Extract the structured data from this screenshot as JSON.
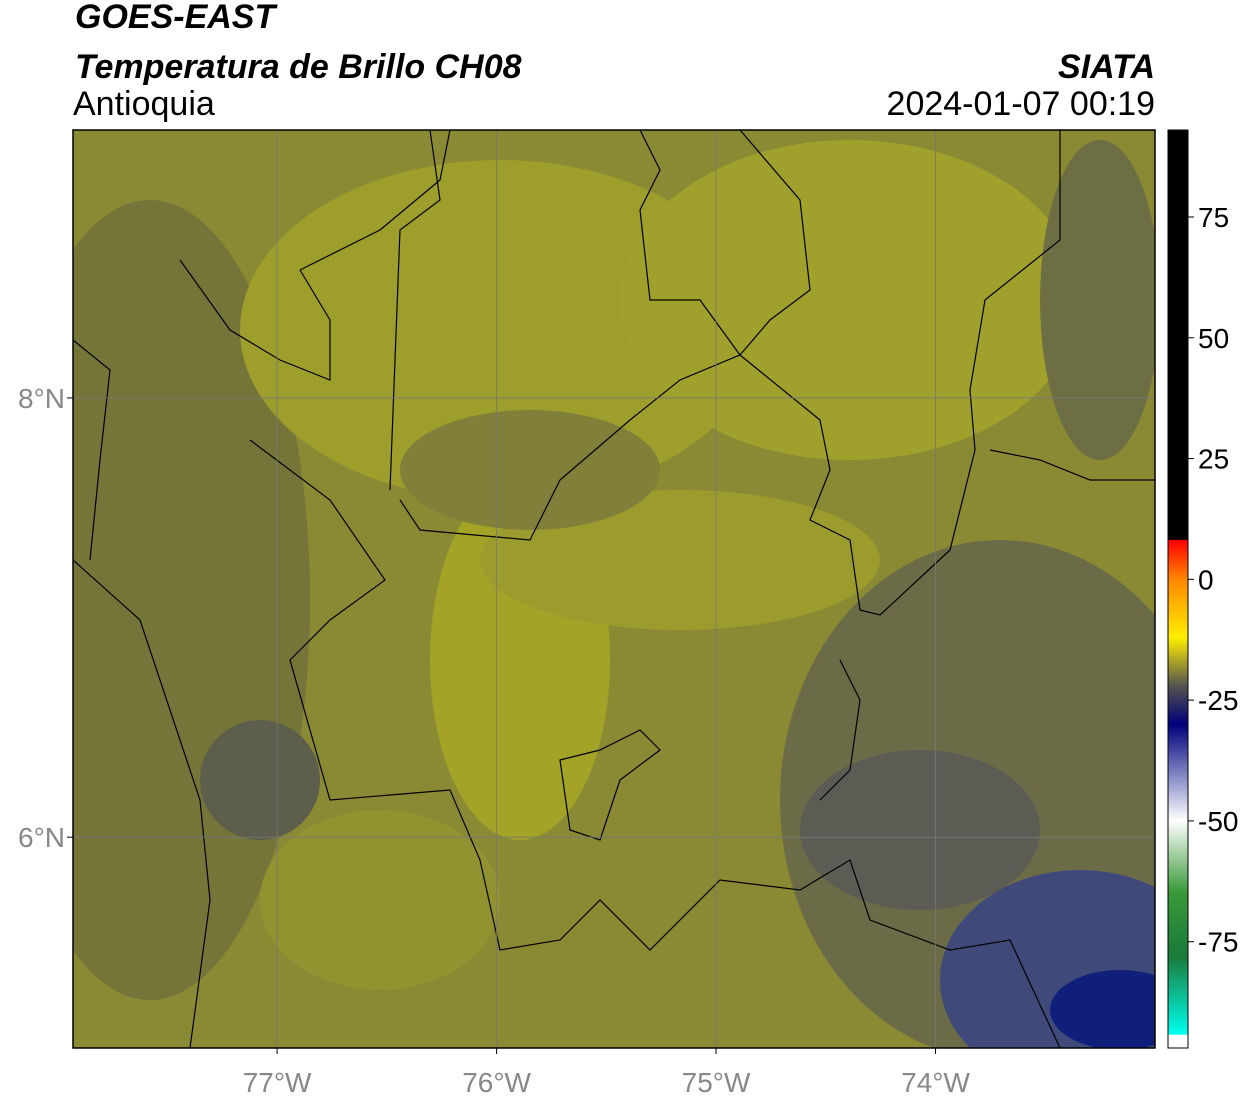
{
  "header": {
    "title": "GOES-EAST",
    "subtitle": "Temperatura de Brillo CH08",
    "region": "Antioquia",
    "source": "SIATA",
    "datetime": "2024-01-07 00:19"
  },
  "map": {
    "lon_lim": [
      -77.93,
      -73.0
    ],
    "lat_lim": [
      5.04,
      9.22
    ],
    "lon_ticks": [
      {
        "value": -77,
        "label": "77°W"
      },
      {
        "value": -76,
        "label": "76°W"
      },
      {
        "value": -75,
        "label": "75°W"
      },
      {
        "value": -74,
        "label": "74°W"
      }
    ],
    "lat_ticks": [
      {
        "value": 8,
        "label": "8°N"
      },
      {
        "value": 6,
        "label": "6°N"
      }
    ]
  },
  "colorbar": {
    "lim": [
      -97,
      93
    ],
    "ticks": [
      75,
      50,
      25,
      0,
      -25,
      -50,
      -75
    ]
  }
}
